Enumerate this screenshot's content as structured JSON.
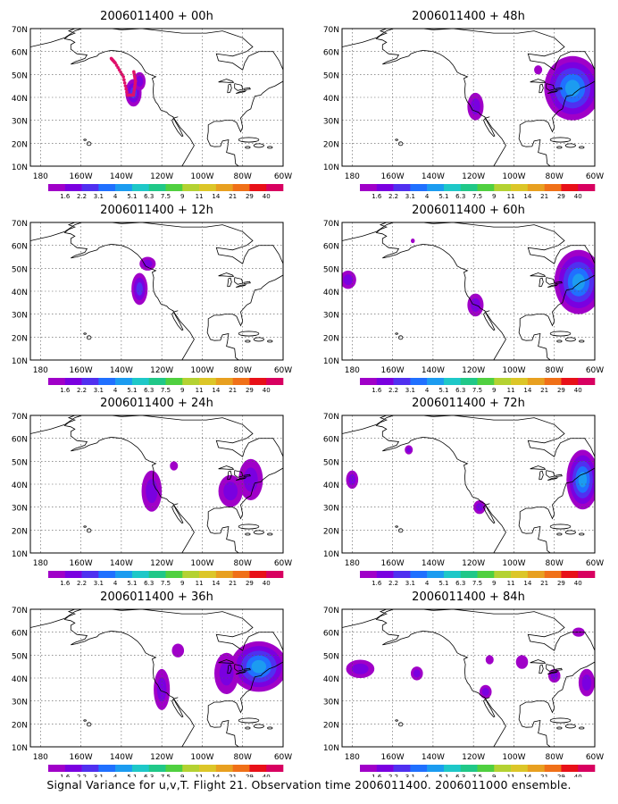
{
  "figure": {
    "caption": "Signal Variance for u,v,T. Flight 21. Observation time 2006011400. 2006011000 ensemble."
  },
  "map": {
    "lat_ticks": [
      "10N",
      "20N",
      "30N",
      "40N",
      "50N",
      "60N",
      "70N"
    ],
    "lon_ticks": [
      "180",
      "160W",
      "140W",
      "120W",
      "100W",
      "80W",
      "60W"
    ],
    "lon_range_deg": [
      -185,
      -60
    ],
    "lat_range_deg": [
      10,
      70
    ],
    "grid": true,
    "grid_style": "dotted"
  },
  "colorbar": {
    "labels": [
      "1.6",
      "2.2",
      "3.1",
      "4",
      "5.1",
      "6.3",
      "7.5",
      "9",
      "11",
      "14",
      "21",
      "29",
      "40"
    ],
    "colors": [
      "#a000c8",
      "#7a00e0",
      "#5030f0",
      "#2070ff",
      "#1c9cf0",
      "#1ec8c8",
      "#20c888",
      "#50d040",
      "#b4d232",
      "#dcc628",
      "#e8a020",
      "#f07018",
      "#e81018",
      "#d80060"
    ]
  },
  "chart_data": [
    {
      "type": "heatmap",
      "title": "2006011400 + 00h",
      "lead": "00h",
      "flight_track": [
        [
          -145,
          57
        ],
        [
          -143,
          55
        ],
        [
          -139,
          49
        ],
        [
          -137,
          41
        ],
        [
          -134,
          41
        ],
        [
          -133,
          47
        ],
        [
          -134,
          52
        ]
      ],
      "blobs": [
        {
          "lon": -134,
          "lat": 42,
          "rx": 4,
          "ry": 6,
          "level": 2
        },
        {
          "lon": -131,
          "lat": 47,
          "rx": 3,
          "ry": 4,
          "level": 1
        }
      ]
    },
    {
      "type": "heatmap",
      "title": "2006011400 + 12h",
      "lead": "12h",
      "blobs": [
        {
          "lon": -131,
          "lat": 41,
          "rx": 4,
          "ry": 7,
          "level": 2
        },
        {
          "lon": -127,
          "lat": 52,
          "rx": 4,
          "ry": 3,
          "level": 1
        }
      ]
    },
    {
      "type": "heatmap",
      "title": "2006011400 + 24h",
      "lead": "24h",
      "blobs": [
        {
          "lon": -125,
          "lat": 37,
          "rx": 5,
          "ry": 9,
          "level": 1
        },
        {
          "lon": -114,
          "lat": 48,
          "rx": 2,
          "ry": 2,
          "level": 0
        },
        {
          "lon": -76,
          "lat": 42,
          "rx": 6,
          "ry": 9,
          "level": 1
        },
        {
          "lon": -86,
          "lat": 37,
          "rx": 6,
          "ry": 7,
          "level": 1
        }
      ]
    },
    {
      "type": "heatmap",
      "title": "2006011400 + 36h",
      "lead": "36h",
      "blobs": [
        {
          "lon": -120,
          "lat": 35,
          "rx": 4,
          "ry": 9,
          "level": 1
        },
        {
          "lon": -72,
          "lat": 45,
          "rx": 14,
          "ry": 11,
          "level": 4
        },
        {
          "lon": -88,
          "lat": 42,
          "rx": 6,
          "ry": 9,
          "level": 1
        },
        {
          "lon": -112,
          "lat": 52,
          "rx": 3,
          "ry": 3,
          "level": 0
        }
      ]
    },
    {
      "type": "heatmap",
      "title": "2006011400 + 48h",
      "lead": "48h",
      "blobs": [
        {
          "lon": -119,
          "lat": 36,
          "rx": 4,
          "ry": 6,
          "level": 1
        },
        {
          "lon": -71,
          "lat": 44,
          "rx": 14,
          "ry": 14,
          "level": 4
        },
        {
          "lon": -88,
          "lat": 52,
          "rx": 2,
          "ry": 2,
          "level": 0
        }
      ]
    },
    {
      "type": "heatmap",
      "title": "2006011400 + 60h",
      "lead": "60h",
      "blobs": [
        {
          "lon": -182,
          "lat": 45,
          "rx": 4,
          "ry": 4,
          "level": 1
        },
        {
          "lon": -119,
          "lat": 34,
          "rx": 4,
          "ry": 5,
          "level": 1
        },
        {
          "lon": -68,
          "lat": 44,
          "rx": 12,
          "ry": 14,
          "level": 4
        },
        {
          "lon": -150,
          "lat": 62,
          "rx": 1,
          "ry": 1,
          "level": 0
        }
      ]
    },
    {
      "type": "heatmap",
      "title": "2006011400 + 72h",
      "lead": "72h",
      "blobs": [
        {
          "lon": -180,
          "lat": 42,
          "rx": 3,
          "ry": 4,
          "level": 1
        },
        {
          "lon": -117,
          "lat": 30,
          "rx": 3,
          "ry": 3,
          "level": 1
        },
        {
          "lon": -66,
          "lat": 42,
          "rx": 8,
          "ry": 13,
          "level": 4
        },
        {
          "lon": -152,
          "lat": 55,
          "rx": 2,
          "ry": 2,
          "level": 1
        }
      ]
    },
    {
      "type": "heatmap",
      "title": "2006011400 + 84h",
      "lead": "84h",
      "blobs": [
        {
          "lon": -176,
          "lat": 44,
          "rx": 7,
          "ry": 4,
          "level": 1
        },
        {
          "lon": -148,
          "lat": 42,
          "rx": 3,
          "ry": 3,
          "level": 1
        },
        {
          "lon": -114,
          "lat": 34,
          "rx": 3,
          "ry": 3,
          "level": 1
        },
        {
          "lon": -112,
          "lat": 48,
          "rx": 2,
          "ry": 2,
          "level": 0
        },
        {
          "lon": -96,
          "lat": 47,
          "rx": 3,
          "ry": 3,
          "level": 0
        },
        {
          "lon": -68,
          "lat": 60,
          "rx": 3,
          "ry": 2,
          "level": 0
        },
        {
          "lon": -64,
          "lat": 38,
          "rx": 4,
          "ry": 6,
          "level": 1
        },
        {
          "lon": -80,
          "lat": 41,
          "rx": 3,
          "ry": 3,
          "level": 1
        }
      ]
    }
  ]
}
